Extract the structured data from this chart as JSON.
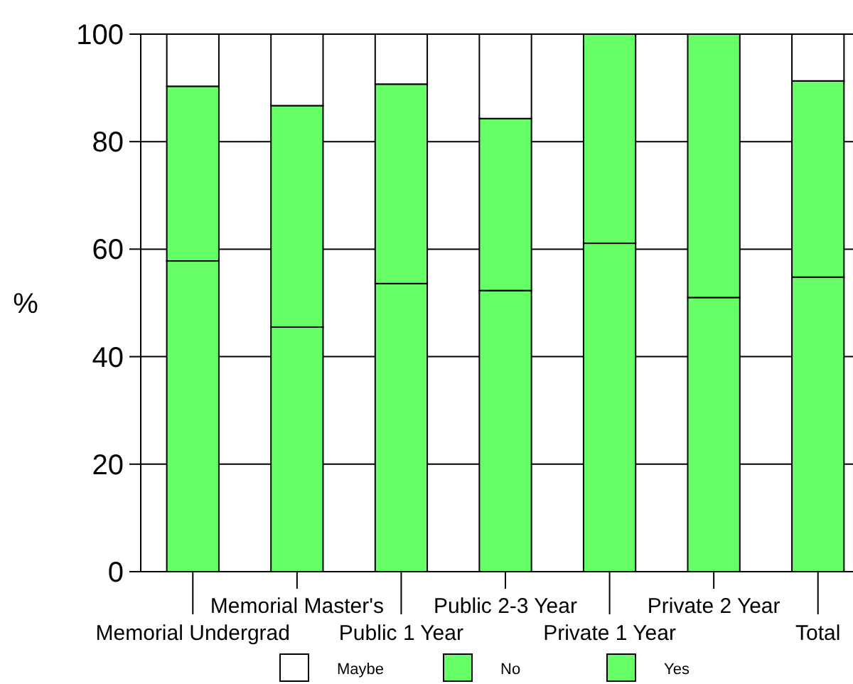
{
  "chart_data": {
    "type": "bar",
    "stacked": true,
    "ylabel": "%",
    "categories": [
      "Memorial Undergrad",
      "Memorial Master's",
      "Public 1 Year",
      "Public 2-3 Year",
      "Private 1 Year",
      "Private 2 Year",
      "Total"
    ],
    "series": [
      {
        "name": "Yes",
        "color": "#66ff66",
        "values": [
          57.8,
          45.5,
          53.6,
          52.3,
          61.1,
          51.0,
          54.8
        ]
      },
      {
        "name": "No",
        "color": "#66ff66",
        "values": [
          32.5,
          41.2,
          37.1,
          32.0,
          38.9,
          49.0,
          36.5
        ]
      },
      {
        "name": "Maybe",
        "color": "#ffffff",
        "values": [
          9.7,
          13.3,
          9.3,
          15.7,
          0,
          0,
          8.7
        ]
      }
    ],
    "ylim": [
      0,
      100
    ],
    "yticks": [
      0,
      20,
      40,
      60,
      80,
      100
    ],
    "grid": "y",
    "legend": "bottom"
  }
}
